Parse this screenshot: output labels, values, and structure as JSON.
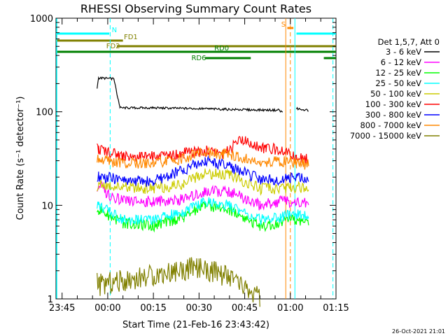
{
  "chart_data": {
    "type": "line",
    "title": "RHESSI Observing Summary Count Rates",
    "xlabel": "Start Time (21-Feb-16 23:43:42)",
    "ylabel": "Count Rate (s⁻¹ detector⁻¹)",
    "y_scale": "log",
    "ylim": [
      1,
      1000
    ],
    "xlim_minutes": [
      -17,
      75
    ],
    "x_ticks": [
      {
        "label": "23:45",
        "t": -15
      },
      {
        "label": "00:00",
        "t": 0
      },
      {
        "label": "00:15",
        "t": 15
      },
      {
        "label": "00:30",
        "t": 30
      },
      {
        "label": "00:45",
        "t": 45
      },
      {
        "label": "01:00",
        "t": 60
      },
      {
        "label": "01:15",
        "t": 75
      }
    ],
    "y_ticks": [
      {
        "label": "1",
        "v": 1
      },
      {
        "label": "10",
        "v": 10
      },
      {
        "label": "100",
        "v": 100
      },
      {
        "label": "1000",
        "v": 1000
      }
    ],
    "legend_header": "Det 1,5,7, Att 0",
    "legend_placement": "right",
    "series": [
      {
        "name": "3 - 6 keV",
        "color": "#000000",
        "points": [
          [
            -3.5,
            180
          ],
          [
            -3,
            230
          ],
          [
            2,
            225
          ],
          [
            4,
            110
          ],
          [
            15,
            110
          ],
          [
            30,
            108
          ],
          [
            45,
            105
          ],
          [
            56,
            104
          ],
          [
            57.5,
            100
          ],
          [
            59,
            0
          ],
          [
            62,
            108
          ],
          [
            66,
            104
          ]
        ]
      },
      {
        "name": "6 - 12 keV",
        "color": "#ff00ff",
        "points": [
          [
            -3.5,
            16
          ],
          [
            -3,
            17
          ],
          [
            0,
            13
          ],
          [
            5,
            11
          ],
          [
            15,
            11
          ],
          [
            25,
            11.5
          ],
          [
            32,
            14
          ],
          [
            40,
            14
          ],
          [
            50,
            10
          ],
          [
            57,
            11
          ],
          [
            62,
            11
          ],
          [
            66,
            10.5
          ]
        ]
      },
      {
        "name": "12 - 25 keV",
        "color": "#00ff00",
        "points": [
          [
            -3.5,
            9
          ],
          [
            -3,
            9
          ],
          [
            5,
            6.5
          ],
          [
            15,
            6
          ],
          [
            25,
            7.5
          ],
          [
            32,
            10
          ],
          [
            40,
            9
          ],
          [
            50,
            6
          ],
          [
            57,
            6.5
          ],
          [
            62,
            7
          ],
          [
            66,
            6.5
          ]
        ]
      },
      {
        "name": "25 - 50 keV",
        "color": "#00ffff",
        "points": [
          [
            -3.5,
            10
          ],
          [
            -3,
            10
          ],
          [
            5,
            7
          ],
          [
            15,
            7
          ],
          [
            25,
            8.5
          ],
          [
            32,
            11
          ],
          [
            40,
            10
          ],
          [
            50,
            7
          ],
          [
            57,
            7.5
          ],
          [
            62,
            8
          ],
          [
            66,
            7.5
          ]
        ]
      },
      {
        "name": "50 - 100 keV",
        "color": "#cccc00",
        "points": [
          [
            -3.5,
            16
          ],
          [
            -3,
            17
          ],
          [
            5,
            15.5
          ],
          [
            15,
            15
          ],
          [
            25,
            17
          ],
          [
            32,
            22
          ],
          [
            40,
            21
          ],
          [
            50,
            15
          ],
          [
            57,
            15
          ],
          [
            62,
            15.5
          ],
          [
            66,
            15
          ]
        ]
      },
      {
        "name": "100 - 300 keV",
        "color": "#ff0000",
        "points": [
          [
            -3.5,
            40
          ],
          [
            -3,
            40
          ],
          [
            5,
            34
          ],
          [
            15,
            33
          ],
          [
            25,
            36
          ],
          [
            32,
            38
          ],
          [
            38,
            36
          ],
          [
            44,
            50
          ],
          [
            52,
            40
          ],
          [
            57,
            40
          ],
          [
            62,
            32
          ],
          [
            66,
            31
          ]
        ]
      },
      {
        "name": "300 - 800 keV",
        "color": "#0000ff",
        "points": [
          [
            -3.5,
            20
          ],
          [
            -3,
            20.5
          ],
          [
            5,
            18.5
          ],
          [
            15,
            18
          ],
          [
            25,
            24
          ],
          [
            32,
            30
          ],
          [
            40,
            26
          ],
          [
            50,
            19
          ],
          [
            57,
            19
          ],
          [
            62,
            19.5
          ],
          [
            66,
            19
          ]
        ]
      },
      {
        "name": "800 - 7000 keV",
        "color": "#ff8800",
        "points": [
          [
            -3.5,
            30
          ],
          [
            -3,
            31
          ],
          [
            5,
            28
          ],
          [
            15,
            28
          ],
          [
            25,
            32
          ],
          [
            32,
            37
          ],
          [
            40,
            35
          ],
          [
            50,
            28
          ],
          [
            57,
            30
          ],
          [
            62,
            28
          ],
          [
            66,
            27
          ]
        ]
      },
      {
        "name": "7000 - 15000 keV",
        "color": "#808000",
        "points": [
          [
            -3.5,
            1.5
          ],
          [
            -3,
            1.4
          ],
          [
            30,
            2.2
          ],
          [
            40,
            1.7
          ],
          [
            50,
            1
          ]
        ]
      }
    ],
    "flag_bars": [
      {
        "label": "N",
        "color": "#00ffff",
        "segments": [
          [
            -17,
            0.5
          ],
          [
            62,
            75
          ]
        ]
      },
      {
        "label": "FD1",
        "color": "#808000",
        "segments": [
          [
            -17,
            5
          ]
        ]
      },
      {
        "label": "FD2",
        "color": "#808000",
        "segments": [
          [
            3,
            75
          ]
        ]
      },
      {
        "label": "RD0",
        "color": "#008000",
        "segments": [
          [
            -17,
            75
          ]
        ]
      },
      {
        "label": "RD6",
        "color": "#008000",
        "segments": [
          [
            32,
            47
          ],
          [
            71,
            75
          ]
        ]
      },
      {
        "label": "S",
        "color": "#ff8800",
        "segments": [
          [
            59,
            61
          ]
        ]
      }
    ],
    "vertical_markers": [
      {
        "t": 0.8,
        "color": "#00ffff",
        "style": "dashed"
      },
      {
        "t": 74,
        "color": "#00ffff",
        "style": "dashed"
      },
      {
        "t": 58.5,
        "color": "#ff8800",
        "style": "solid"
      },
      {
        "t": 60,
        "color": "#ff8800",
        "style": "dashed"
      },
      {
        "t": 61.5,
        "color": "#00ffff",
        "style": "solid"
      }
    ],
    "grid": false
  },
  "footer": {
    "timestamp": "26-Oct-2021 21:01"
  }
}
